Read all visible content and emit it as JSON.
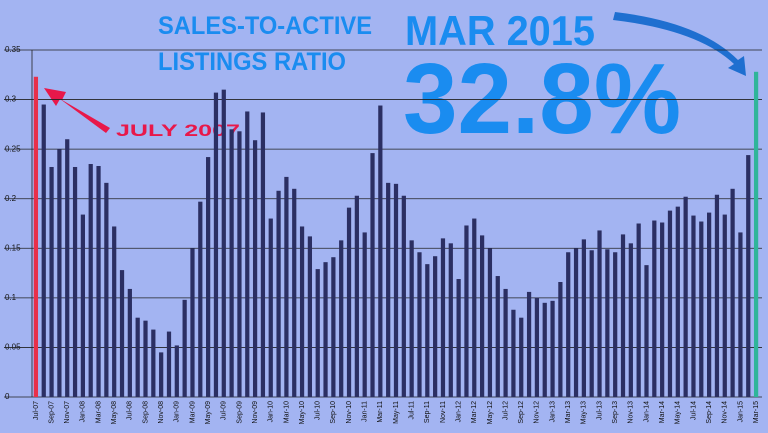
{
  "chart_data": {
    "type": "bar",
    "title": [
      "SALES-TO-ACTIVE",
      "LISTINGS RATIO"
    ],
    "annotations": [
      {
        "text": "JULY 2007",
        "color": "#e8184a"
      },
      {
        "text": "MAR 2015",
        "color": "#1a8cf0"
      },
      {
        "text": "32.8%",
        "color": "#1a8cf0"
      }
    ],
    "categories": [
      "Jul-07",
      null,
      "Sep-07",
      null,
      "Nov-07",
      null,
      "Jan-08",
      null,
      "Mar-08",
      null,
      "May-08",
      null,
      "Jul-08",
      null,
      "Sep-08",
      null,
      "Nov-08",
      null,
      "Jan-09",
      null,
      "Mar-09",
      null,
      "May-09",
      null,
      "Jul-09",
      null,
      "Sep-09",
      null,
      "Nov-09",
      null,
      "Jan-10",
      null,
      "Mar-10",
      null,
      "May-10",
      null,
      "Jul-10",
      null,
      "Sep-10",
      null,
      "Nov-10",
      null,
      "Jan-11",
      null,
      "Mar-11",
      null,
      "May-11",
      null,
      "Jul-11",
      null,
      "Sep-11",
      null,
      "Nov-11",
      null,
      "Jan-12",
      null,
      "Mar-12",
      null,
      "May-12",
      null,
      "Jul-12",
      null,
      "Sep-12",
      null,
      "Nov-12",
      null,
      "Jan-13",
      null,
      "Mar-13",
      null,
      "May-13",
      null,
      "Jul-13",
      null,
      "Sep-13",
      null,
      "Nov-13",
      null,
      "Jan-14",
      null,
      "Mar-14",
      null,
      "May-14",
      null,
      "Jul-14",
      null,
      "Sep-14",
      null,
      "Nov-14",
      null,
      "Jan-15",
      null,
      "Mar-15"
    ],
    "values": [
      0.323,
      0.295,
      0.232,
      0.25,
      0.26,
      0.232,
      0.184,
      0.235,
      0.233,
      0.216,
      0.172,
      0.128,
      0.109,
      0.08,
      0.077,
      0.068,
      0.045,
      0.066,
      0.052,
      0.098,
      0.15,
      0.197,
      0.242,
      0.307,
      0.31,
      0.27,
      0.268,
      0.288,
      0.259,
      0.287,
      0.18,
      0.208,
      0.222,
      0.21,
      0.172,
      0.162,
      0.129,
      0.136,
      0.141,
      0.158,
      0.191,
      0.203,
      0.166,
      0.246,
      0.294,
      0.216,
      0.215,
      0.203,
      0.158,
      0.146,
      0.134,
      0.142,
      0.16,
      0.155,
      0.119,
      0.173,
      0.18,
      0.163,
      0.15,
      0.122,
      0.109,
      0.088,
      0.08,
      0.106,
      0.1,
      0.095,
      0.097,
      0.116,
      0.146,
      0.15,
      0.159,
      0.148,
      0.168,
      0.149,
      0.146,
      0.164,
      0.155,
      0.175,
      0.133,
      0.178,
      0.176,
      0.188,
      0.192,
      0.202,
      0.183,
      0.177,
      0.186,
      0.204,
      0.184,
      0.21,
      0.166,
      0.244,
      0.328
    ],
    "colors": [
      "#e8304a",
      "#2b2f63",
      "#2b2f63",
      "#2b2f63",
      "#2b2f63",
      "#2b2f63",
      "#2b2f63",
      "#2b2f63",
      "#2b2f63",
      "#2b2f63",
      "#2b2f63",
      "#2b2f63",
      "#2b2f63",
      "#2b2f63",
      "#2b2f63",
      "#2b2f63",
      "#2b2f63",
      "#2b2f63",
      "#2b2f63",
      "#2b2f63",
      "#2b2f63",
      "#2b2f63",
      "#2b2f63",
      "#2b2f63",
      "#2b2f63",
      "#2b2f63",
      "#2b2f63",
      "#2b2f63",
      "#2b2f63",
      "#2b2f63",
      "#2b2f63",
      "#2b2f63",
      "#2b2f63",
      "#2b2f63",
      "#2b2f63",
      "#2b2f63",
      "#2b2f63",
      "#2b2f63",
      "#2b2f63",
      "#2b2f63",
      "#2b2f63",
      "#2b2f63",
      "#2b2f63",
      "#2b2f63",
      "#2b2f63",
      "#2b2f63",
      "#2b2f63",
      "#2b2f63",
      "#2b2f63",
      "#2b2f63",
      "#2b2f63",
      "#2b2f63",
      "#2b2f63",
      "#2b2f63",
      "#2b2f63",
      "#2b2f63",
      "#2b2f63",
      "#2b2f63",
      "#2b2f63",
      "#2b2f63",
      "#2b2f63",
      "#2b2f63",
      "#2b2f63",
      "#2b2f63",
      "#2b2f63",
      "#2b2f63",
      "#2b2f63",
      "#2b2f63",
      "#2b2f63",
      "#2b2f63",
      "#2b2f63",
      "#2b2f63",
      "#2b2f63",
      "#2b2f63",
      "#2b2f63",
      "#2b2f63",
      "#2b2f63",
      "#2b2f63",
      "#2b2f63",
      "#2b2f63",
      "#2b2f63",
      "#2b2f63",
      "#2b2f63",
      "#2b2f63",
      "#2b2f63",
      "#2b2f63",
      "#2b2f63",
      "#2b2f63",
      "#2b2f63",
      "#2b2f63",
      "#2b2f63",
      "#2b2f63",
      "#2fb59a"
    ],
    "ylim": [
      0,
      0.35
    ],
    "yticks": [
      0,
      0.05,
      0.1,
      0.15,
      0.2,
      0.25,
      0.3,
      0.35
    ],
    "grid": true
  }
}
